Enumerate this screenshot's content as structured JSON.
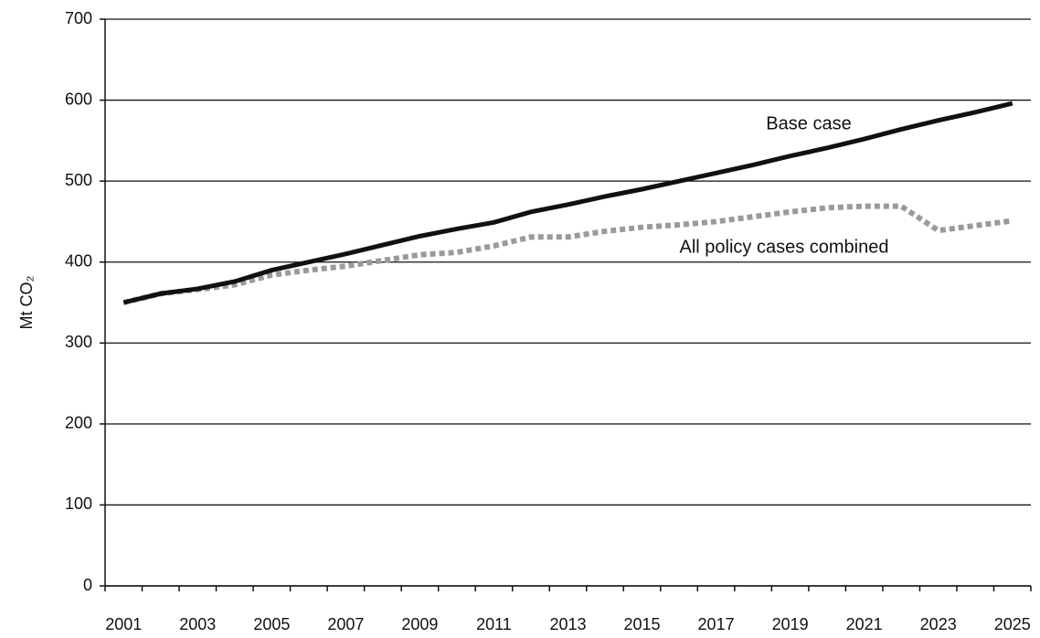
{
  "chart_data": {
    "type": "line",
    "ylabel": "Mt CO₂",
    "categories": [
      "2001",
      null,
      "2003",
      null,
      "2005",
      null,
      "2007",
      null,
      "2009",
      null,
      "2011",
      null,
      "2013",
      null,
      "2015",
      null,
      "2017",
      null,
      "2019",
      null,
      "2021",
      null,
      "2023",
      null,
      "2025"
    ],
    "series": [
      {
        "name": "Base case",
        "color": "#111111",
        "dashed": false,
        "values": [
          350,
          361,
          367,
          376,
          390,
          400,
          410,
          421,
          432,
          441,
          449,
          462,
          471,
          481,
          490,
          500,
          510,
          520,
          531,
          541,
          552,
          564,
          575,
          585,
          596
        ]
      },
      {
        "name": "All policy cases combined",
        "color": "#9a9a9a",
        "dashed": true,
        "values": [
          350,
          361,
          366,
          372,
          384,
          390,
          395,
          402,
          409,
          412,
          420,
          431,
          431,
          438,
          443,
          446,
          450,
          456,
          462,
          467,
          469,
          469,
          439,
          445,
          451
        ]
      }
    ],
    "ylim": [
      0,
      700
    ],
    "yticks": [
      0,
      100,
      200,
      300,
      400,
      500,
      600,
      700
    ],
    "grid": true
  }
}
